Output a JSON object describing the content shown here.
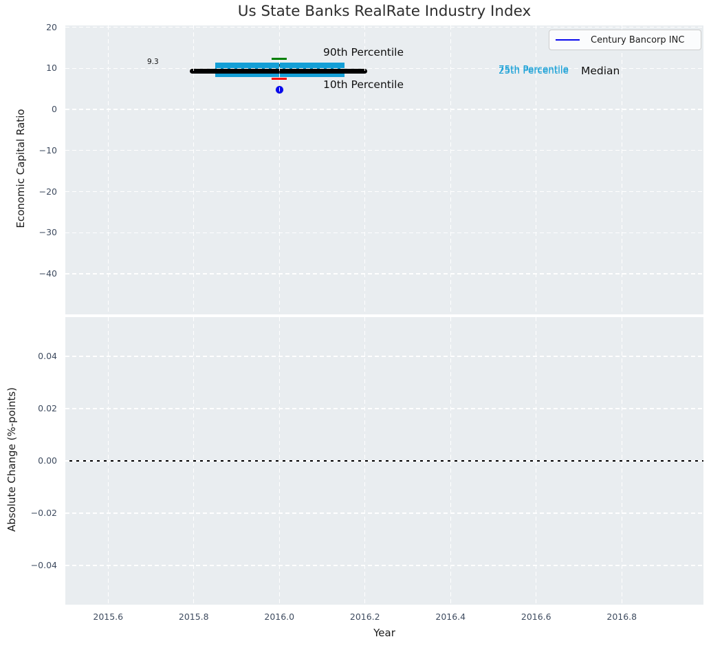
{
  "title": "Us State Banks RealRate Industry Index",
  "legend": {
    "label": "Century Bancorp INC",
    "line_color": "#0808ec"
  },
  "top_chart": {
    "ylabel": "Economic Capital Ratio",
    "ytick_labels": [
      "20",
      "10",
      "0",
      "−10",
      "−20",
      "−30",
      "−40"
    ],
    "annotations": {
      "p90": "90th Percentile",
      "p10": "10th Percentile",
      "p75": "75th Percentile",
      "p25": "25th Percentile",
      "median": "Median",
      "median_value_label": "9.3"
    }
  },
  "bottom_chart": {
    "ylabel": "Absolute Change (%-points)",
    "xlabel": "Year",
    "ytick_labels": [
      "0.04",
      "0.02",
      "0.00",
      "−0.02",
      "−0.04"
    ],
    "xtick_labels": [
      "2015.6",
      "2015.8",
      "2016.0",
      "2016.2",
      "2016.4",
      "2016.6",
      "2016.8"
    ]
  },
  "chart_data": [
    {
      "type": "box",
      "title": "Us State Banks RealRate Industry Index",
      "ylabel": "Economic Capital Ratio",
      "x": [
        2016.0
      ],
      "median": [
        9.3
      ],
      "q1": [
        7.8
      ],
      "q3": [
        11.3
      ],
      "p10": [
        7.5
      ],
      "p90": [
        12.3
      ],
      "median_line_span": [
        2015.79,
        2016.205
      ],
      "box_span": [
        2015.85,
        2016.153
      ],
      "series": [
        {
          "name": "Century Bancorp INC",
          "x": [
            2016.0
          ],
          "values": [
            4.8
          ],
          "color": "#0808ec",
          "marker": "circle"
        }
      ],
      "yticks": [
        20,
        10,
        0,
        -10,
        -20,
        -30,
        -40
      ],
      "ylim": [
        -50.0,
        20.4
      ],
      "xlim": [
        2015.5,
        2016.99
      ],
      "grid": true,
      "legend_position": "upper right",
      "colors": {
        "box": "#149fd6",
        "median_line": "#000000",
        "p90_whisker": "#007f00",
        "p10_whisker": "#f40000",
        "background": "#e9edf0",
        "gridline": "#ffffff"
      },
      "annotation_values": {
        "median_label": 9.3
      }
    },
    {
      "type": "line",
      "ylabel": "Absolute Change (%-points)",
      "xlabel": "Year",
      "x": [],
      "values": [],
      "zero_line": 0.0,
      "yticks": [
        0.04,
        0.02,
        0.0,
        -0.02,
        -0.04
      ],
      "xticks": [
        2015.6,
        2015.8,
        2016.0,
        2016.2,
        2016.4,
        2016.6,
        2016.8
      ],
      "ylim": [
        -0.055,
        0.055
      ],
      "xlim": [
        2015.5,
        2016.99
      ],
      "grid": true
    }
  ]
}
